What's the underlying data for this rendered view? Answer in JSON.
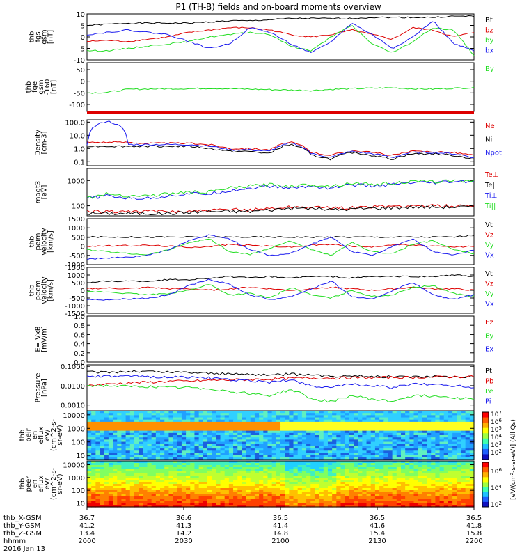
{
  "title": "P1 (TH-B) fields and on-board moments overview",
  "colors": {
    "black": "#000000",
    "red": "#dd0000",
    "green": "#22dd22",
    "blue": "#1a1aee"
  },
  "chart_data": [
    {
      "type": "line",
      "id": "fgs_gsm",
      "ylabel": [
        "thb",
        "fgs",
        "gsm",
        "[nT]"
      ],
      "yticks": [
        "10",
        "5",
        "0",
        "-5",
        "-10"
      ],
      "ylim": [
        -10,
        10
      ],
      "series": [
        {
          "name": "Bt",
          "color": "black",
          "values": [
            5,
            5.5,
            6,
            6,
            6,
            6,
            6.5,
            7,
            7,
            7.5,
            8,
            8,
            8,
            8,
            8.5,
            8.5,
            8.5,
            8.5,
            9,
            9
          ]
        },
        {
          "name": "bz",
          "color": "red",
          "values": [
            -2,
            -1.5,
            -2,
            -1,
            0,
            2,
            3,
            4,
            4,
            3,
            1,
            0,
            1,
            3,
            1,
            -1,
            4,
            3,
            0,
            2
          ]
        },
        {
          "name": "by",
          "color": "green",
          "values": [
            -6,
            -6,
            -5,
            -4,
            -3,
            -2,
            0,
            1,
            2,
            1,
            -4,
            -6,
            0,
            5,
            -3,
            -7,
            -2,
            4,
            3,
            -8
          ]
        },
        {
          "name": "bx",
          "color": "blue",
          "values": [
            1,
            2,
            3,
            2,
            1,
            -2,
            -5,
            -3,
            4,
            2,
            -3,
            -7,
            -2,
            6,
            1,
            -5,
            0,
            7,
            -3,
            -6
          ]
        }
      ]
    },
    {
      "type": "line",
      "id": "fge_gsm",
      "ylabel": [
        "thb",
        "fge",
        "gsm",
        "-160",
        "[nT]"
      ],
      "yticks": [
        "50",
        "0",
        "-50",
        "-100"
      ],
      "ylim": [
        -130,
        80
      ],
      "series": [
        {
          "name": "By",
          "color": "green",
          "values": [
            -50,
            -48,
            -35,
            -33,
            -32,
            -32,
            -30,
            -32,
            -34,
            -36,
            -38,
            -40,
            -35,
            -32,
            -30,
            -28,
            -32,
            -34,
            -30,
            -28
          ]
        }
      ]
    },
    {
      "type": "line",
      "id": "density",
      "log": true,
      "ylabel": [
        "Density",
        "[cm-3]"
      ],
      "yticks": [
        "100.0",
        "10.0",
        "1.0",
        "0.1"
      ],
      "ylim": [
        0.05,
        150
      ],
      "series": [
        {
          "name": "Ne",
          "color": "red",
          "values": [
            3,
            3,
            3,
            2.5,
            2.5,
            2.5,
            2,
            1,
            1,
            0.8,
            3,
            0.5,
            0.3,
            0.7,
            0.5,
            0.3,
            0.6,
            0.6,
            0.5,
            0.3
          ]
        },
        {
          "name": "Ni",
          "color": "black",
          "values": [
            1.5,
            1.5,
            1.5,
            1.5,
            1.5,
            1.5,
            1,
            0.6,
            0.6,
            0.4,
            2,
            0.3,
            0.15,
            0.5,
            0.3,
            0.15,
            0.4,
            0.4,
            0.3,
            0.15
          ]
        },
        {
          "name": "Npot",
          "color": "blue",
          "values": [
            2,
            120,
            2,
            2,
            2,
            2,
            1.5,
            0.8,
            0.8,
            0.6,
            2.5,
            0.4,
            0.2,
            0.6,
            0.4,
            0.2,
            0.5,
            0.5,
            0.4,
            0.2
          ]
        }
      ]
    },
    {
      "type": "line",
      "id": "magt3",
      "log": true,
      "ylabel": [
        "magt3",
        "[eV]"
      ],
      "yticks": [
        "1000",
        "100"
      ],
      "ylim": [
        40,
        3000
      ],
      "series": [
        {
          "name": "Te⊥",
          "color": "red",
          "values": [
            60,
            60,
            60,
            60,
            60,
            60,
            65,
            70,
            70,
            80,
            90,
            90,
            80,
            85,
            90,
            95,
            100,
            100,
            100,
            100
          ]
        },
        {
          "name": "Te||",
          "color": "black",
          "values": [
            50,
            50,
            50,
            50,
            50,
            55,
            60,
            60,
            60,
            70,
            80,
            80,
            70,
            75,
            80,
            85,
            90,
            90,
            90,
            90
          ]
        },
        {
          "name": "Ti⊥",
          "color": "blue",
          "values": [
            200,
            250,
            200,
            200,
            250,
            300,
            300,
            400,
            500,
            600,
            500,
            600,
            500,
            700,
            600,
            700,
            800,
            800,
            900,
            900
          ]
        },
        {
          "name": "Ti||",
          "color": "green",
          "values": [
            200,
            300,
            250,
            250,
            300,
            350,
            350,
            500,
            600,
            700,
            600,
            700,
            600,
            800,
            700,
            800,
            900,
            900,
            1000,
            1000
          ]
        }
      ]
    },
    {
      "type": "line",
      "id": "peim_velocity",
      "ylabel": [
        "thb",
        "peim",
        "velocity",
        "[km/s]"
      ],
      "yticks": [
        "1500",
        "1000",
        "500",
        "0",
        "-500",
        "-1000"
      ],
      "ylim": [
        -1000,
        1500
      ],
      "series": [
        {
          "name": "Vt",
          "color": "black",
          "values": [
            500,
            500,
            500,
            500,
            500,
            500,
            500,
            500,
            500,
            500,
            500,
            500,
            500,
            500,
            500,
            500,
            500,
            500,
            500,
            600
          ]
        },
        {
          "name": "Vz",
          "color": "red",
          "values": [
            0,
            20,
            30,
            50,
            0,
            -50,
            -30,
            100,
            50,
            0,
            -50,
            50,
            100,
            0,
            -50,
            100,
            50,
            0,
            -50,
            0
          ]
        },
        {
          "name": "Vy",
          "color": "green",
          "values": [
            -200,
            -300,
            -400,
            -450,
            -200,
            200,
            400,
            -300,
            -450,
            -100,
            300,
            -200,
            -500,
            200,
            -300,
            -400,
            100,
            300,
            -200,
            -400
          ]
        },
        {
          "name": "Vx",
          "color": "blue",
          "values": [
            -700,
            -650,
            -600,
            -500,
            -200,
            300,
            600,
            400,
            -200,
            -500,
            -400,
            100,
            500,
            -300,
            -500,
            0,
            400,
            -300,
            -500,
            -200
          ]
        }
      ]
    },
    {
      "type": "line",
      "id": "peem_velocity",
      "ylabel": [
        "thb",
        "peem",
        "velocity",
        "[km/s]"
      ],
      "yticks": [
        "1500",
        "1000",
        "500",
        "0",
        "-500",
        "-1000",
        "-1500"
      ],
      "ylim": [
        -1500,
        1500
      ],
      "series": [
        {
          "name": "Vt",
          "color": "black",
          "values": [
            500,
            600,
            600,
            600,
            700,
            700,
            800,
            900,
            800,
            900,
            800,
            900,
            900,
            800,
            900,
            900,
            900,
            900,
            1000,
            900
          ]
        },
        {
          "name": "Vz",
          "color": "red",
          "values": [
            100,
            150,
            100,
            200,
            100,
            100,
            0,
            100,
            200,
            100,
            0,
            100,
            200,
            100,
            0,
            100,
            200,
            100,
            100,
            0
          ]
        },
        {
          "name": "Vy",
          "color": "green",
          "values": [
            -100,
            -100,
            -200,
            -300,
            -200,
            0,
            400,
            -300,
            -200,
            -500,
            200,
            -300,
            -500,
            0,
            -400,
            -300,
            200,
            300,
            -200,
            -400
          ]
        },
        {
          "name": "Vx",
          "color": "blue",
          "values": [
            -600,
            -600,
            -550,
            -500,
            -300,
            300,
            700,
            400,
            -300,
            -600,
            -400,
            100,
            600,
            -400,
            -600,
            0,
            500,
            -300,
            -600,
            -300
          ]
        }
      ]
    },
    {
      "type": "line",
      "id": "efield",
      "ylabel": [
        "E=-VxB",
        "[mV/m]"
      ],
      "yticks": [
        "1.0",
        "0.8",
        "0.6",
        "0.4",
        "0.2",
        "0.0"
      ],
      "ylim": [
        0,
        1
      ],
      "series": [
        {
          "name": "Ez",
          "color": "red",
          "values": []
        },
        {
          "name": "Ey",
          "color": "green",
          "values": []
        },
        {
          "name": "Ex",
          "color": "blue",
          "values": []
        }
      ]
    },
    {
      "type": "line",
      "id": "pressure",
      "log": true,
      "ylabel": [
        "Pressure",
        "[nPa]"
      ],
      "yticks": [
        "0.1000",
        "0.0100",
        "0.0010"
      ],
      "ylim": [
        0.0005,
        0.12
      ],
      "series": [
        {
          "name": "Pt",
          "color": "black",
          "values": [
            0.05,
            0.05,
            0.055,
            0.055,
            0.05,
            0.05,
            0.045,
            0.04,
            0.04,
            0.035,
            0.04,
            0.035,
            0.03,
            0.035,
            0.03,
            0.03,
            0.03,
            0.03,
            0.03,
            0.03
          ]
        },
        {
          "name": "Pb",
          "color": "red",
          "values": [
            0.01,
            0.012,
            0.014,
            0.015,
            0.017,
            0.017,
            0.019,
            0.02,
            0.021,
            0.022,
            0.024,
            0.025,
            0.025,
            0.026,
            0.026,
            0.027,
            0.027,
            0.028,
            0.029,
            0.03
          ]
        },
        {
          "name": "Pe",
          "color": "green",
          "values": [
            0.01,
            0.01,
            0.009,
            0.009,
            0.008,
            0.008,
            0.007,
            0.005,
            0.004,
            0.003,
            0.006,
            0.002,
            0.0015,
            0.003,
            0.002,
            0.0015,
            0.003,
            0.003,
            0.0025,
            0.002
          ]
        },
        {
          "name": "Pi",
          "color": "blue",
          "values": [
            0.03,
            0.03,
            0.03,
            0.03,
            0.028,
            0.028,
            0.025,
            0.02,
            0.018,
            0.015,
            0.02,
            0.01,
            0.008,
            0.012,
            0.01,
            0.008,
            0.012,
            0.012,
            0.01,
            0.008
          ]
        }
      ]
    },
    {
      "type": "heatmap",
      "id": "peir_en_eflux",
      "ylabel": [
        "thb",
        "peir",
        "en",
        "eflux",
        "eV/",
        "(cm^2-s-",
        "sr-eV)"
      ],
      "yticks": [
        "10000",
        "1000",
        "100",
        "10"
      ],
      "ylim": [
        5,
        20000
      ]
    },
    {
      "type": "heatmap",
      "id": "peer_en_eflux",
      "ylabel": [
        "thb",
        "peer",
        "en",
        "eflux",
        "eV/",
        "(cm^2-s-",
        "sr-eV)"
      ],
      "yticks": [
        "10000",
        "1000",
        "100",
        "10"
      ],
      "ylim": [
        5,
        20000
      ]
    }
  ],
  "colorbar": {
    "label": "[eV/(cm²-s-sr-eV)] (All Qs)",
    "ticks_top": [
      "10^7",
      "10^6",
      "10^5",
      "10^4",
      "10^3",
      "10^2"
    ],
    "ticks_bottom": [
      "10^6",
      "10^4",
      "10^2"
    ]
  },
  "xaxis": {
    "rows": [
      {
        "label": "thb_X-GSM",
        "values": [
          "36.7",
          "36.6",
          "36.5",
          "36.5",
          "36.5"
        ]
      },
      {
        "label": "thb_Y-GSM",
        "values": [
          "41.2",
          "41.3",
          "41.4",
          "41.6",
          "41.8"
        ]
      },
      {
        "label": "thb_Z-GSM",
        "values": [
          "13.4",
          "14.2",
          "14.8",
          "15.4",
          "15.8"
        ]
      },
      {
        "label": "hhmm",
        "values": [
          "2000",
          "2030",
          "2100",
          "2130",
          "2200"
        ]
      }
    ],
    "date": "2016 Jan 13"
  },
  "status_bar": "quality flag bar"
}
